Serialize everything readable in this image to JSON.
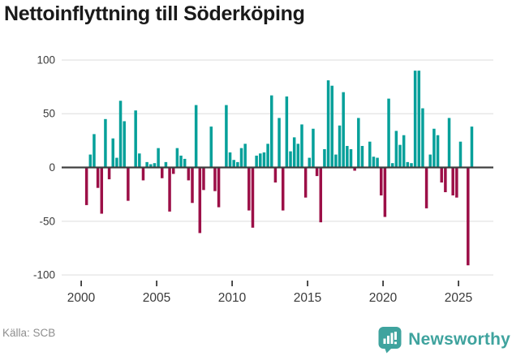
{
  "title": "Nettoinflyttning till Söderköping",
  "footer": {
    "source": "Källa: SCB",
    "brand_name": "Newsworthy"
  },
  "colors": {
    "positive": "#05a09a",
    "negative": "#9c0f47",
    "axis_line": "#3d3d3d",
    "gridline": "#e4e4e4",
    "tick_text": "#3a3a3a",
    "title_text": "#1a1a1a",
    "source_text": "#8e8e8e",
    "brand_teal": "#3fa39e"
  },
  "chart_data": {
    "type": "bar",
    "title": "Nettoinflyttning till Söderköping",
    "frequency": "quarterly",
    "start_period": "2000Q1",
    "end_period": "2025Q4",
    "grid": true,
    "legend": false,
    "ylim": [
      -100,
      100
    ],
    "xticks": [
      "2000",
      "2005",
      "2010",
      "2015",
      "2020",
      "2025"
    ],
    "yticks": [
      "100",
      "50",
      "0",
      "-50",
      "-100"
    ],
    "positive_color": "#05a09a",
    "negative_color": "#9c0f47",
    "values": [
      0,
      -35,
      12,
      31,
      -19,
      -43,
      45,
      -11,
      27,
      9,
      62,
      43,
      -31,
      0,
      53,
      13,
      -12,
      5,
      3,
      4,
      18,
      -10,
      5,
      -41,
      -6,
      18,
      11,
      8,
      -12,
      -33,
      58,
      -61,
      -21,
      0,
      38,
      -22,
      -37,
      0,
      58,
      14,
      7,
      5,
      18,
      22,
      -40,
      -56,
      11,
      13,
      14,
      22,
      67,
      -14,
      46,
      -40,
      66,
      15,
      28,
      22,
      40,
      -28,
      9,
      36,
      -8,
      -51,
      17,
      81,
      76,
      12,
      39,
      70,
      20,
      17,
      -3,
      46,
      20,
      0,
      24,
      10,
      9,
      -26,
      -46,
      64,
      4,
      34,
      21,
      30,
      5,
      4,
      90,
      90,
      55,
      -38,
      12,
      36,
      30,
      -14,
      -23,
      46,
      -26,
      -28,
      24,
      0,
      -91,
      38
    ]
  }
}
